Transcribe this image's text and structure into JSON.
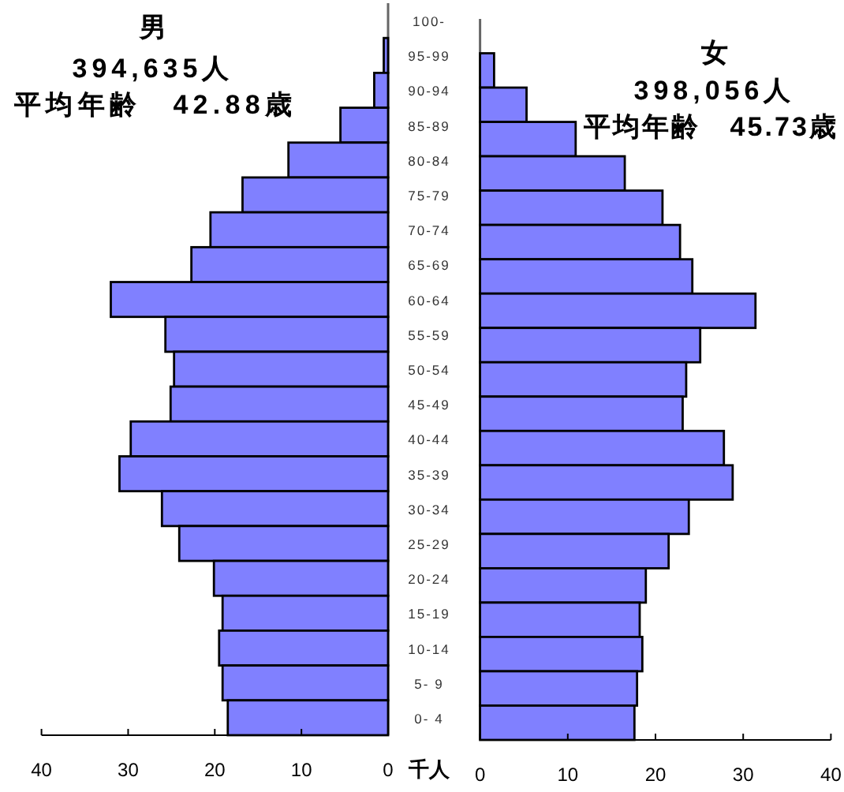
{
  "chart_data": [
    {
      "type": "bar",
      "orientation": "horizontal",
      "title": "男",
      "subtitle": "394,635人",
      "annotations": [
        "平均年齢　42.88歳"
      ],
      "xlabel": "千人",
      "color": "#8080ff",
      "categories": [
        "100-",
        "95-99",
        "90-94",
        "85-89",
        "80-84",
        "75-79",
        "70-74",
        "65-69",
        "60-64",
        "55-59",
        "50-54",
        "45-49",
        "40-44",
        "35-39",
        "30-34",
        "25-29",
        "20-24",
        "15-19",
        "10-14",
        "5- 9",
        "0- 4"
      ],
      "values": [
        0,
        0.5,
        1.6,
        5.5,
        11.5,
        16.8,
        20.5,
        22.7,
        32.0,
        25.7,
        24.7,
        25.1,
        29.7,
        31.0,
        26.1,
        24.1,
        20.1,
        19.1,
        19.5,
        19.1,
        18.5
      ],
      "xlim": [
        40,
        0
      ],
      "xticks": [
        0,
        10,
        20,
        30,
        40
      ]
    },
    {
      "type": "bar",
      "orientation": "horizontal",
      "title": "女",
      "subtitle": "398,056人",
      "annotations": [
        "平均年齢　45.73歳"
      ],
      "color": "#8080ff",
      "categories": [
        null,
        null,
        null,
        null,
        null,
        null,
        null,
        null,
        null,
        null,
        null,
        null,
        null,
        null,
        null,
        null,
        null,
        null,
        null,
        null,
        null
      ],
      "values": [
        0,
        1.6,
        5.3,
        10.9,
        16.5,
        20.8,
        22.8,
        24.2,
        31.4,
        25.1,
        23.5,
        23.1,
        27.8,
        28.8,
        23.8,
        21.5,
        18.9,
        18.2,
        18.5,
        17.9,
        17.6
      ],
      "xlim": [
        0,
        40
      ],
      "xticks": [
        0,
        10,
        20,
        30,
        40
      ]
    }
  ]
}
